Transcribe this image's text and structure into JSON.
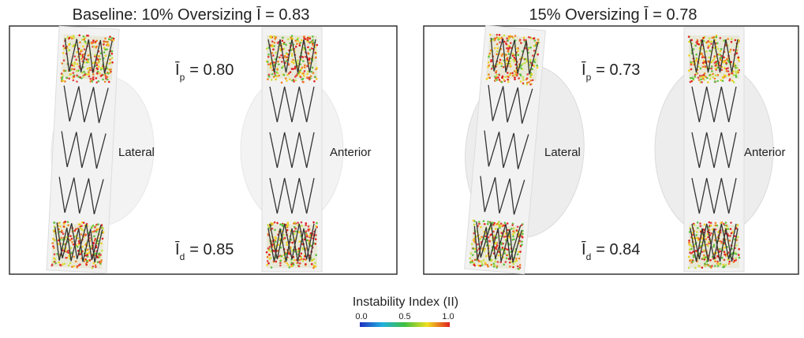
{
  "panels": [
    {
      "title": "Baseline: 10% Oversizing  Ī = 0.83",
      "views": [
        "Lateral",
        "Anterior"
      ],
      "proximal": {
        "symbol": "Ī",
        "sub": "p",
        "value": "= 0.80"
      },
      "distal": {
        "symbol": "Ī",
        "sub": "d",
        "value": "= 0.85"
      }
    },
    {
      "title": "15% Oversizing Ī = 0.78",
      "views": [
        "Lateral",
        "Anterior"
      ],
      "proximal": {
        "symbol": "Ī",
        "sub": "p",
        "value": "= 0.73"
      },
      "distal": {
        "symbol": "Ī",
        "sub": "d",
        "value": "= 0.84"
      }
    }
  ],
  "colorbar": {
    "title": "Instability Index (II)",
    "ticks": [
      "0.0",
      "0.5",
      "1.0"
    ]
  }
}
